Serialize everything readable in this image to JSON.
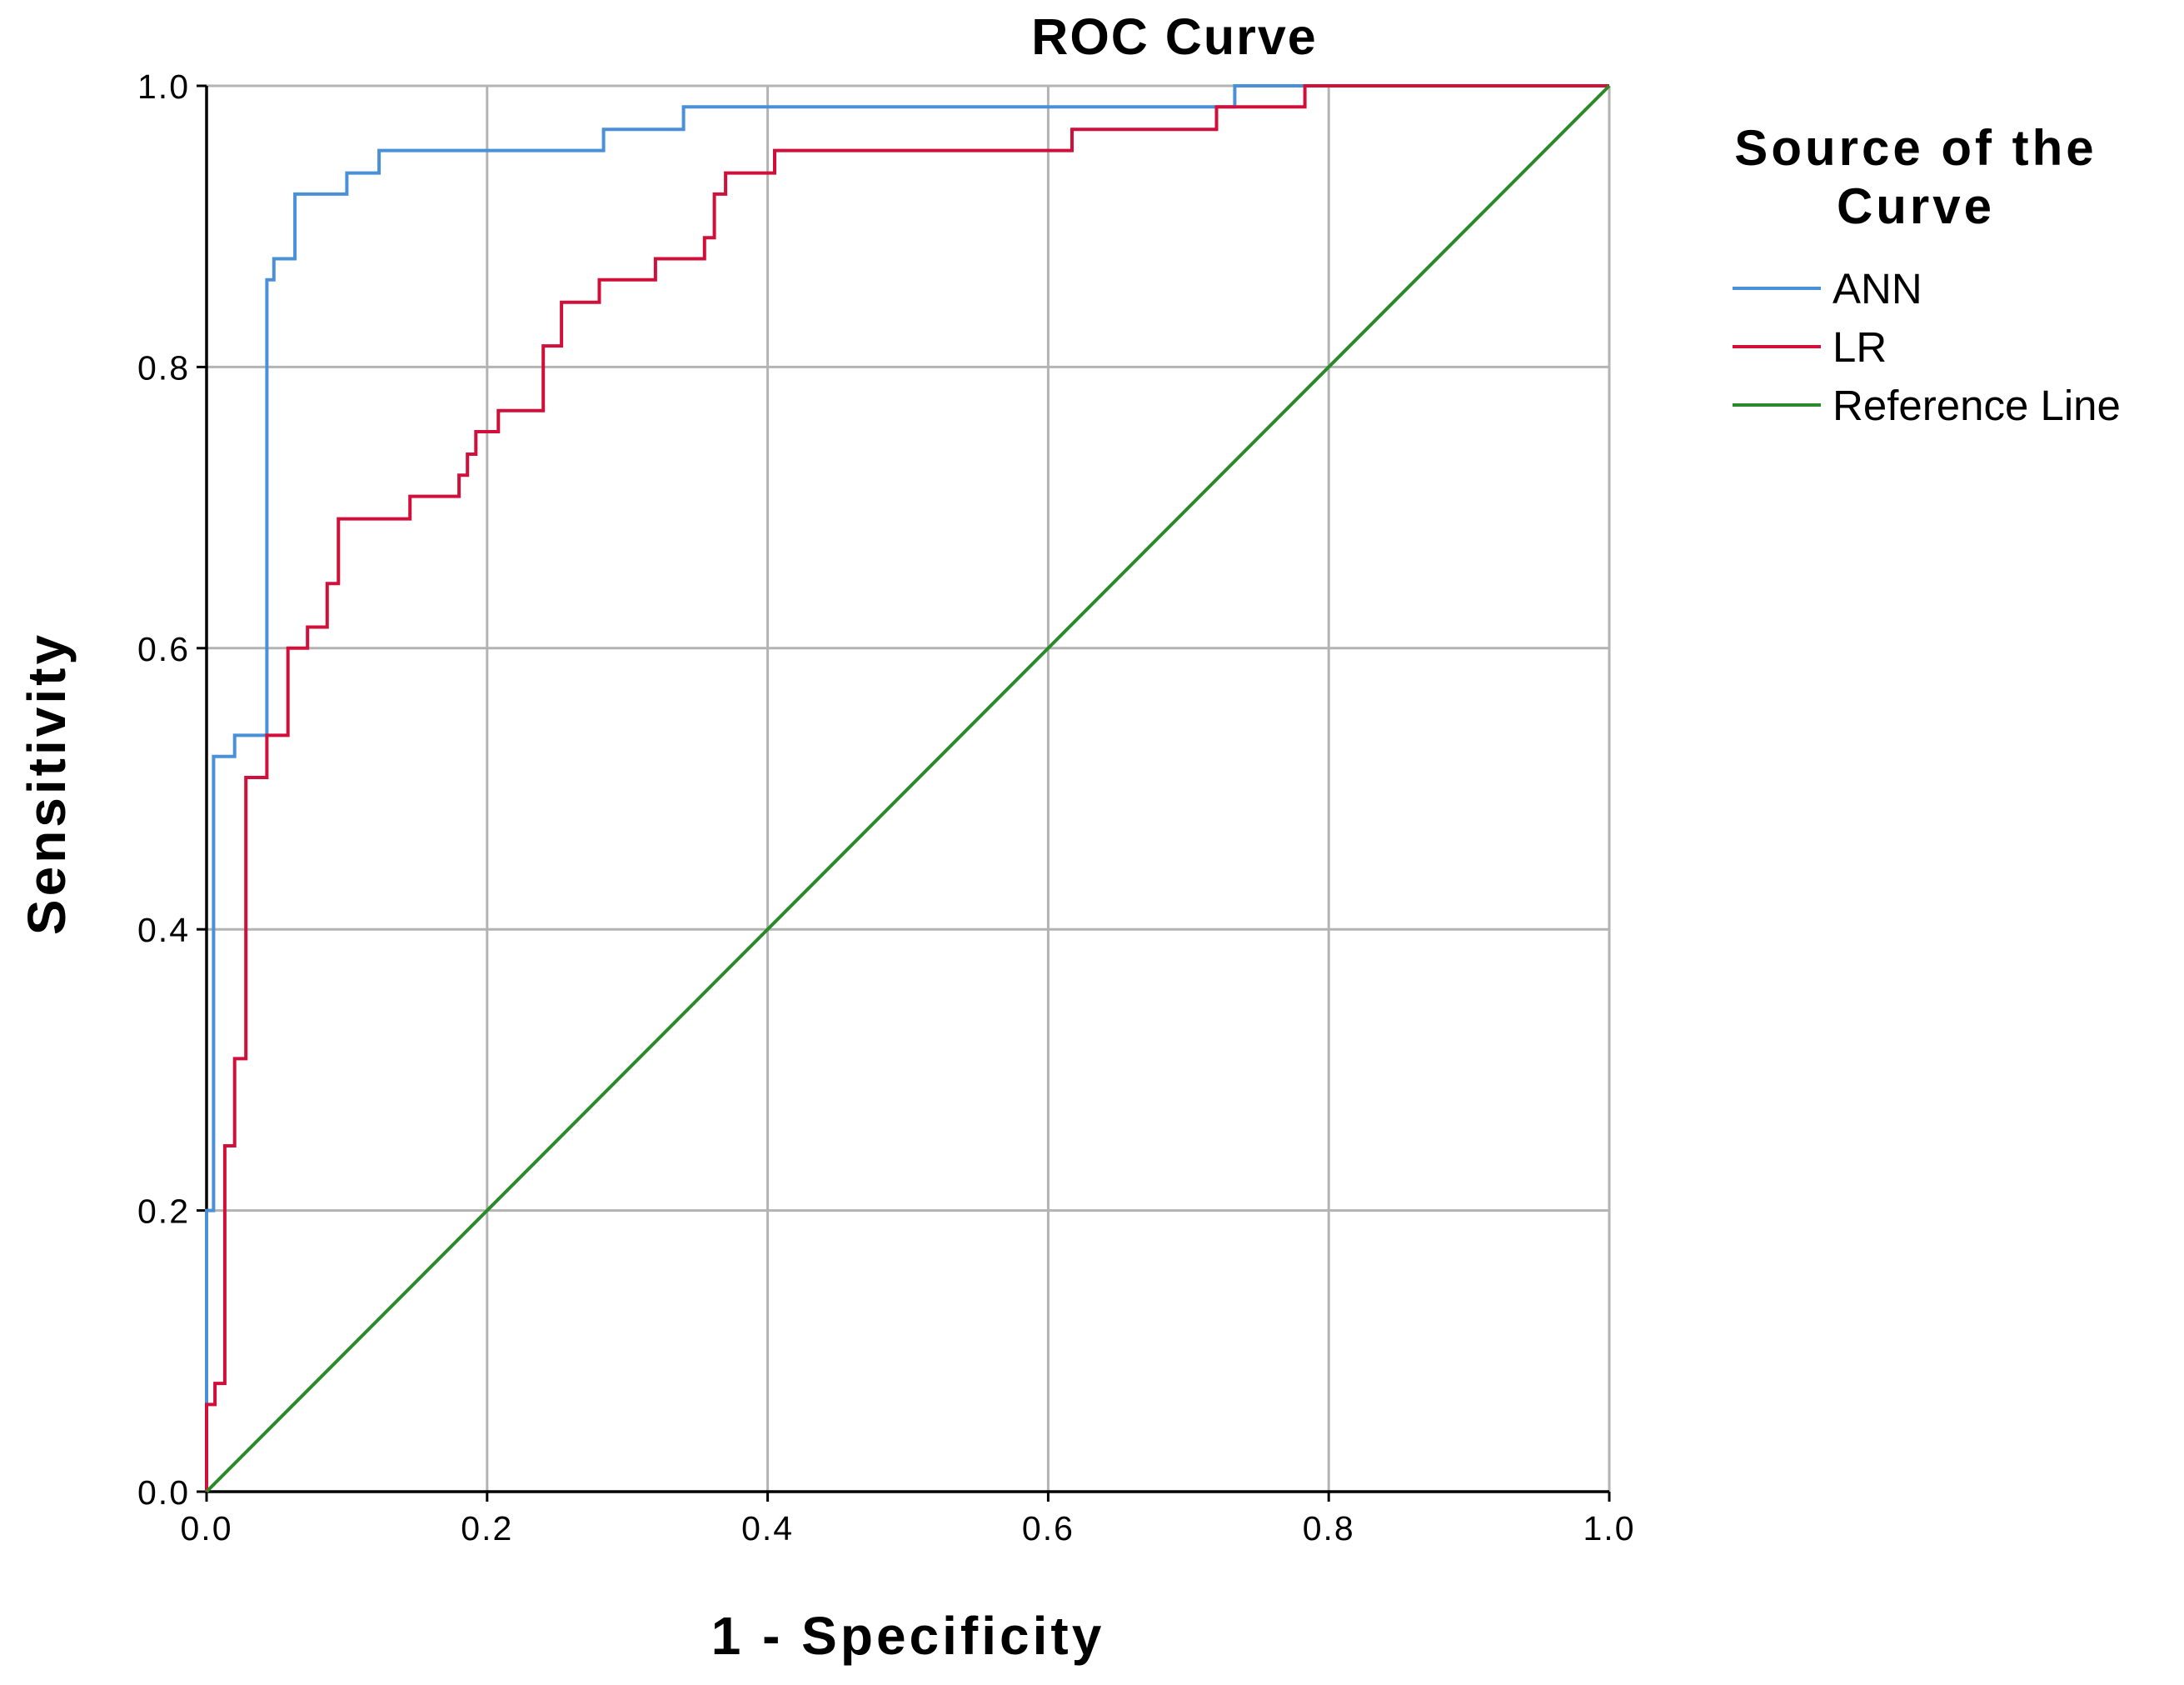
{
  "chart_data": {
    "type": "line",
    "title": "ROC Curve",
    "xlabel": "1 - Specificity",
    "ylabel": "Sensitivity",
    "xlim": [
      0,
      1
    ],
    "ylim": [
      0,
      1
    ],
    "grid": true,
    "x_ticks": [
      0.0,
      0.2,
      0.4,
      0.6,
      0.8,
      1.0
    ],
    "y_ticks": [
      0.0,
      0.2,
      0.4,
      0.6,
      0.8,
      1.0
    ],
    "x_tick_labels": [
      "0.0",
      "0.2",
      "0.4",
      "0.6",
      "0.8",
      "1.0"
    ],
    "y_tick_labels": [
      "0.0",
      "0.2",
      "0.4",
      "0.6",
      "0.8",
      "1.0"
    ],
    "legend": {
      "title": "Source of the Curve",
      "title_lines": [
        "Source of the",
        "Curve"
      ],
      "placement": "right"
    },
    "series": [
      {
        "name": "ANN",
        "color": "#4a90d9",
        "x": [
          0,
          0,
          0.005,
          0.005,
          0.02,
          0.02,
          0.043,
          0.043,
          0.048,
          0.048,
          0.063,
          0.063,
          0.1,
          0.1,
          0.123,
          0.123,
          0.283,
          0.283,
          0.34,
          0.34,
          0.733,
          0.733,
          0.783,
          0.783,
          1.0
        ],
        "y": [
          0,
          0.2,
          0.2,
          0.523,
          0.523,
          0.538,
          0.538,
          0.862,
          0.862,
          0.877,
          0.877,
          0.923,
          0.923,
          0.938,
          0.938,
          0.954,
          0.954,
          0.969,
          0.969,
          0.985,
          0.985,
          1.0,
          1.0,
          1.0,
          1.0
        ]
      },
      {
        "name": "LR",
        "color": "#d0103a",
        "x": [
          0,
          0,
          0.006,
          0.006,
          0.013,
          0.013,
          0.02,
          0.02,
          0.028,
          0.028,
          0.043,
          0.043,
          0.058,
          0.058,
          0.072,
          0.072,
          0.086,
          0.086,
          0.094,
          0.094,
          0.145,
          0.145,
          0.18,
          0.18,
          0.186,
          0.186,
          0.192,
          0.192,
          0.208,
          0.208,
          0.24,
          0.24,
          0.253,
          0.253,
          0.28,
          0.28,
          0.32,
          0.32,
          0.355,
          0.355,
          0.362,
          0.362,
          0.37,
          0.37,
          0.405,
          0.405,
          0.617,
          0.617,
          0.72,
          0.72,
          0.783,
          0.783,
          1.0
        ],
        "y": [
          0,
          0.062,
          0.062,
          0.077,
          0.077,
          0.246,
          0.246,
          0.308,
          0.308,
          0.508,
          0.508,
          0.538,
          0.538,
          0.6,
          0.6,
          0.615,
          0.615,
          0.646,
          0.646,
          0.692,
          0.692,
          0.708,
          0.708,
          0.723,
          0.723,
          0.738,
          0.738,
          0.754,
          0.754,
          0.769,
          0.769,
          0.815,
          0.815,
          0.846,
          0.846,
          0.862,
          0.862,
          0.877,
          0.877,
          0.892,
          0.892,
          0.923,
          0.923,
          0.938,
          0.938,
          0.954,
          0.954,
          0.969,
          0.969,
          0.985,
          0.985,
          1.0,
          1.0
        ]
      },
      {
        "name": "Reference Line",
        "color": "#2a8a2a",
        "x": [
          0,
          1
        ],
        "y": [
          0,
          1
        ]
      }
    ]
  }
}
